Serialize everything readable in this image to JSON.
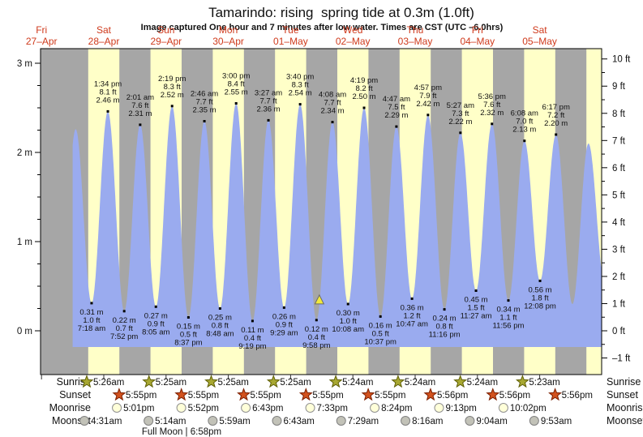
{
  "header": {
    "title": "Tamarindo: rising  spring tide at 0.3m (1.0ft)",
    "subtitle": "Image captured One hour and 7 minutes after low water. Times are CST (UTC –6.0hrs)"
  },
  "day_labels": [
    {
      "dow": "Fri",
      "date": "27–Apr"
    },
    {
      "dow": "Sat",
      "date": "28–Apr"
    },
    {
      "dow": "Sun",
      "date": "29–Apr"
    },
    {
      "dow": "Mon",
      "date": "30–Apr"
    },
    {
      "dow": "Tue",
      "date": "01–May"
    },
    {
      "dow": "Wed",
      "date": "02–May"
    },
    {
      "dow": "Thu",
      "date": "03–May"
    },
    {
      "dow": "Fri",
      "date": "04–May"
    },
    {
      "dow": "Sat",
      "date": "05–May"
    }
  ],
  "y_axis_left": {
    "unit": "m",
    "major_labels": [
      "0 m",
      "1 m",
      "2 m",
      "3 m"
    ]
  },
  "y_axis_right": {
    "unit": "ft",
    "major_labels": [
      "–1 ft",
      "0 ft",
      "1 ft",
      "2 ft",
      "3 ft",
      "4 ft",
      "5 ft",
      "6 ft",
      "7 ft",
      "8 ft",
      "9 ft",
      "10 ft"
    ]
  },
  "chart_data": {
    "type": "area",
    "title": "Tide height curve, Tamarindo",
    "x_axis_note": "hours since Sat 28-Apr 00:00, one column per day, yellow band = 6am-6pm",
    "ylim_m": [
      -0.49,
      3.16
    ],
    "grid": false,
    "extremes": [
      {
        "t": -4.9,
        "h": 0.25,
        "kind": "L"
      },
      {
        "t": 1.17,
        "h": 2.26,
        "kind": "H"
      },
      {
        "t": 7.3,
        "h": 0.31,
        "kind": "L",
        "m": "0.31 m",
        "ft": "1.0 ft",
        "time": "7:18 am"
      },
      {
        "t": 13.57,
        "h": 2.46,
        "kind": "H",
        "m": "2.46 m",
        "ft": "8.1 ft",
        "time": "1:34 pm"
      },
      {
        "t": 19.87,
        "h": 0.22,
        "kind": "L",
        "m": "0.22 m",
        "ft": "0.7 ft",
        "time": "7:52 pm"
      },
      {
        "t": 26.02,
        "h": 2.31,
        "kind": "H",
        "m": "2.31 m",
        "ft": "7.6 ft",
        "time": "2:01 am"
      },
      {
        "t": 32.08,
        "h": 0.27,
        "kind": "L",
        "m": "0.27 m",
        "ft": "0.9 ft",
        "time": "8:05 am"
      },
      {
        "t": 38.32,
        "h": 2.52,
        "kind": "H",
        "m": "2.52 m",
        "ft": "8.3 ft",
        "time": "2:19 pm"
      },
      {
        "t": 44.62,
        "h": 0.15,
        "kind": "L",
        "m": "0.15 m",
        "ft": "0.5 ft",
        "time": "8:37 pm"
      },
      {
        "t": 50.77,
        "h": 2.35,
        "kind": "H",
        "m": "2.35 m",
        "ft": "7.7 ft",
        "time": "2:46 am"
      },
      {
        "t": 56.8,
        "h": 0.25,
        "kind": "L",
        "m": "0.25 m",
        "ft": "0.8 ft",
        "time": "8:48 am"
      },
      {
        "t": 63.0,
        "h": 2.55,
        "kind": "H",
        "m": "2.55 m",
        "ft": "8.4 ft",
        "time": "3:00 pm"
      },
      {
        "t": 69.32,
        "h": 0.11,
        "kind": "L",
        "m": "0.11 m",
        "ft": "0.4 ft",
        "time": "9:19 pm"
      },
      {
        "t": 75.45,
        "h": 2.36,
        "kind": "H",
        "m": "2.36 m",
        "ft": "7.7 ft",
        "time": "3:27 am"
      },
      {
        "t": 81.48,
        "h": 0.26,
        "kind": "L",
        "m": "0.26 m",
        "ft": "0.9 ft",
        "time": "9:29 am"
      },
      {
        "t": 87.67,
        "h": 2.54,
        "kind": "H",
        "m": "2.54 m",
        "ft": "8.3 ft",
        "time": "3:40 pm"
      },
      {
        "t": 93.97,
        "h": 0.12,
        "kind": "L",
        "m": "0.12 m",
        "ft": "0.4 ft",
        "time": "9:58 pm"
      },
      {
        "t": 100.13,
        "h": 2.34,
        "kind": "H",
        "m": "2.34 m",
        "ft": "7.7 ft",
        "time": "4:08 am"
      },
      {
        "t": 106.13,
        "h": 0.3,
        "kind": "L",
        "m": "0.30 m",
        "ft": "1.0 ft",
        "time": "10:08 am"
      },
      {
        "t": 112.32,
        "h": 2.5,
        "kind": "H",
        "m": "2.50 m",
        "ft": "8.2 ft",
        "time": "4:19 pm"
      },
      {
        "t": 118.62,
        "h": 0.16,
        "kind": "L",
        "m": "0.16 m",
        "ft": "0.5 ft",
        "time": "10:37 pm"
      },
      {
        "t": 124.78,
        "h": 2.29,
        "kind": "H",
        "m": "2.29 m",
        "ft": "7.5 ft",
        "time": "4:47 am"
      },
      {
        "t": 130.78,
        "h": 0.36,
        "kind": "L",
        "m": "0.36 m",
        "ft": "1.2 ft",
        "time": "10:47 am"
      },
      {
        "t": 136.95,
        "h": 2.42,
        "kind": "H",
        "m": "2.42 m",
        "ft": "7.9 ft",
        "time": "4:57 pm"
      },
      {
        "t": 143.27,
        "h": 0.24,
        "kind": "L",
        "m": "0.24 m",
        "ft": "0.8 ft",
        "time": "11:16 pm"
      },
      {
        "t": 149.45,
        "h": 2.22,
        "kind": "H",
        "m": "2.22 m",
        "ft": "7.3 ft",
        "time": "5:27 am"
      },
      {
        "t": 155.45,
        "h": 0.45,
        "kind": "L",
        "m": "0.45 m",
        "ft": "1.5 ft",
        "time": "11:27 am"
      },
      {
        "t": 161.6,
        "h": 2.32,
        "kind": "H",
        "m": "2.32 m",
        "ft": "7.6 ft",
        "time": "5:36 pm"
      },
      {
        "t": 167.93,
        "h": 0.34,
        "kind": "L",
        "m": "0.34 m",
        "ft": "1.1 ft",
        "time": "11:56 pm"
      },
      {
        "t": 174.13,
        "h": 2.13,
        "kind": "H",
        "m": "2.13 m",
        "ft": "7.0 ft",
        "time": "6:08 am"
      },
      {
        "t": 180.13,
        "h": 0.56,
        "kind": "L",
        "m": "0.56 m",
        "ft": "1.8 ft",
        "time": "12:08 pm"
      },
      {
        "t": 186.28,
        "h": 2.2,
        "kind": "H",
        "m": "2.20 m",
        "ft": "7.2 ft",
        "time": "6:17 pm"
      },
      {
        "t": 192.6,
        "h": 0.3,
        "kind": "L"
      },
      {
        "t": 198.8,
        "h": 2.1,
        "kind": "H"
      },
      {
        "t": 205.0,
        "h": 0.55,
        "kind": "L"
      }
    ],
    "current_marker": {
      "t": 95.08,
      "h": 0.31,
      "note": "current tide 0.3m (1.0ft), rising, 1h07m after low water"
    }
  },
  "astro": {
    "rows": [
      {
        "name": "Sunrise",
        "icon": "sunrise-star",
        "entries": [
          {
            "t": 5.43,
            "label": "5:26am"
          },
          {
            "t": 29.42,
            "label": "5:25am"
          },
          {
            "t": 53.42,
            "label": "5:25am"
          },
          {
            "t": 77.42,
            "label": "5:25am"
          },
          {
            "t": 101.4,
            "label": "5:24am"
          },
          {
            "t": 125.4,
            "label": "5:24am"
          },
          {
            "t": 149.4,
            "label": "5:24am"
          },
          {
            "t": 173.38,
            "label": "5:23am"
          }
        ]
      },
      {
        "name": "Sunset",
        "icon": "sunset-star",
        "entries": [
          {
            "t": 17.92,
            "label": "5:55pm"
          },
          {
            "t": 41.92,
            "label": "5:55pm"
          },
          {
            "t": 65.92,
            "label": "5:55pm"
          },
          {
            "t": 89.92,
            "label": "5:55pm"
          },
          {
            "t": 113.92,
            "label": "5:55pm"
          },
          {
            "t": 137.93,
            "label": "5:56pm"
          },
          {
            "t": 161.93,
            "label": "5:56pm"
          },
          {
            "t": 185.93,
            "label": "5:56pm"
          }
        ]
      },
      {
        "name": "Moonrise",
        "icon": "moonrise-circle",
        "entries": [
          {
            "t": 17.02,
            "label": "5:01pm"
          },
          {
            "t": 41.87,
            "label": "5:52pm"
          },
          {
            "t": 66.72,
            "label": "6:43pm"
          },
          {
            "t": 91.55,
            "label": "7:33pm"
          },
          {
            "t": 116.4,
            "label": "8:24pm"
          },
          {
            "t": 141.22,
            "label": "9:13pm"
          },
          {
            "t": 166.03,
            "label": "10:02pm"
          }
        ]
      },
      {
        "name": "Moonset",
        "icon": "moonset-circle",
        "entries": [
          {
            "t": 4.52,
            "label": "4:31am"
          },
          {
            "t": 29.23,
            "label": "5:14am"
          },
          {
            "t": 53.98,
            "label": "5:59am"
          },
          {
            "t": 78.72,
            "label": "6:43am"
          },
          {
            "t": 103.48,
            "label": "7:29am"
          },
          {
            "t": 128.27,
            "label": "8:16am"
          },
          {
            "t": 153.07,
            "label": "9:04am"
          },
          {
            "t": 177.88,
            "label": "9:53am"
          }
        ]
      }
    ],
    "footnote": "Full Moon | 6:58pm"
  },
  "colors": {
    "plot_bg": "#a6a6a6",
    "day_band": "#ffffc8",
    "tide_fill": "#9aabef",
    "date_label": "#cf3a1c",
    "sunrise_star_fill": "#a8a832",
    "sunrise_star_stroke": "#5f5f08",
    "sunset_star_fill": "#d2521e",
    "sunset_star_stroke": "#7c1f00",
    "moonrise_fill": "#ffffd9",
    "moonrise_stroke": "#909090",
    "moonset_fill": "#c2c2b8",
    "moonset_stroke": "#808080",
    "marker_fill": "#f2ea3a",
    "marker_stroke": "#6a6a6a"
  }
}
